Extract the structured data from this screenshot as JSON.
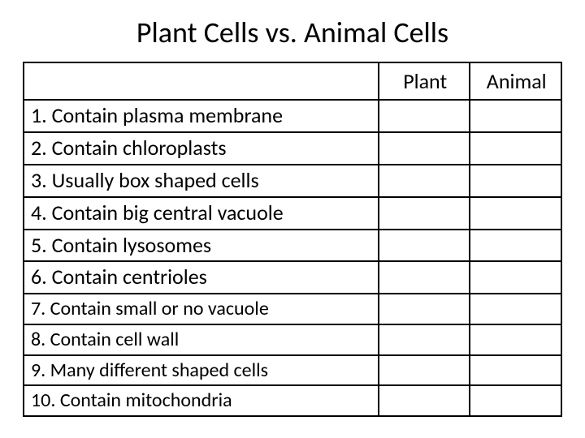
{
  "title": "Plant Cells vs. Animal Cells",
  "headers": {
    "feature": "",
    "plant": "Plant",
    "animal": "Animal"
  },
  "rows": [
    {
      "label": "1. Contain plasma membrane",
      "size": "lg"
    },
    {
      "label": "2. Contain chloroplasts",
      "size": "lg"
    },
    {
      "label": "3. Usually box shaped cells",
      "size": "lg"
    },
    {
      "label": "4. Contain big central vacuole",
      "size": "lg"
    },
    {
      "label": "5. Contain lysosomes",
      "size": "lg"
    },
    {
      "label": "6. Contain centrioles",
      "size": "lg"
    },
    {
      "label": "7. Contain small or no vacuole",
      "size": "sm"
    },
    {
      "label": "8. Contain cell wall",
      "size": "sm"
    },
    {
      "label": "9. Many different shaped cells",
      "size": "sm"
    },
    {
      "label": "10. Contain mitochondria",
      "size": "sm"
    }
  ],
  "colors": {
    "border": "#000000",
    "background": "#ffffff",
    "text": "#000000"
  },
  "fontsizes": {
    "title": 36,
    "header": 26,
    "row_lg": 26,
    "row_sm": 24
  }
}
